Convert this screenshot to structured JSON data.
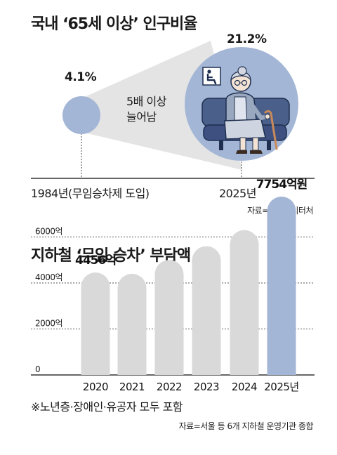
{
  "section1": {
    "title": "국내 ‘65세 이상’ 인구비율",
    "note_line1": "5배 이상",
    "note_line2": "늘어남",
    "source": "자료=국가데이터처",
    "icon": "priority-seat-icon",
    "illustration": "elderly-woman-on-subway-seat"
  },
  "section2": {
    "title": "지하철 ‘무임 승차’ 부담액",
    "footnote": "※노년층·장애인·유공자 모두 포함",
    "source": "자료=서울 등 6개 지하철 운영기관 종합"
  },
  "colors": {
    "bar_gray": "#d9d9d9",
    "bar_highlight": "#a4b6d6",
    "circle_blue": "#a4b6d6",
    "cone_fill": "#e4e4e4",
    "axis": "#333333"
  },
  "chart_data": [
    {
      "type": "bubble",
      "title": "국내 ‘65세 이상’ 인구비율",
      "categories": [
        "1984년(무임승차제 도입)",
        "2025년"
      ],
      "values": [
        4.1,
        21.2
      ],
      "labels": [
        "4.1%",
        "21.2%"
      ]
    },
    {
      "type": "bar",
      "title": "지하철 ‘무임 승차’ 부담액",
      "categories": [
        "2020",
        "2021",
        "2022",
        "2023",
        "2024",
        "2025년"
      ],
      "values": [
        4456,
        4400,
        5000,
        5600,
        6300,
        7754
      ],
      "value_labels": [
        "4456억",
        "",
        "",
        "",
        "",
        "7754억원"
      ],
      "ylim": [
        0,
        8000
      ],
      "yticks": [
        0,
        2000,
        4000,
        6000
      ],
      "ytick_labels": [
        "0",
        "2000억",
        "4000억",
        "6000억"
      ],
      "grid": true,
      "highlight_index": 5
    }
  ]
}
